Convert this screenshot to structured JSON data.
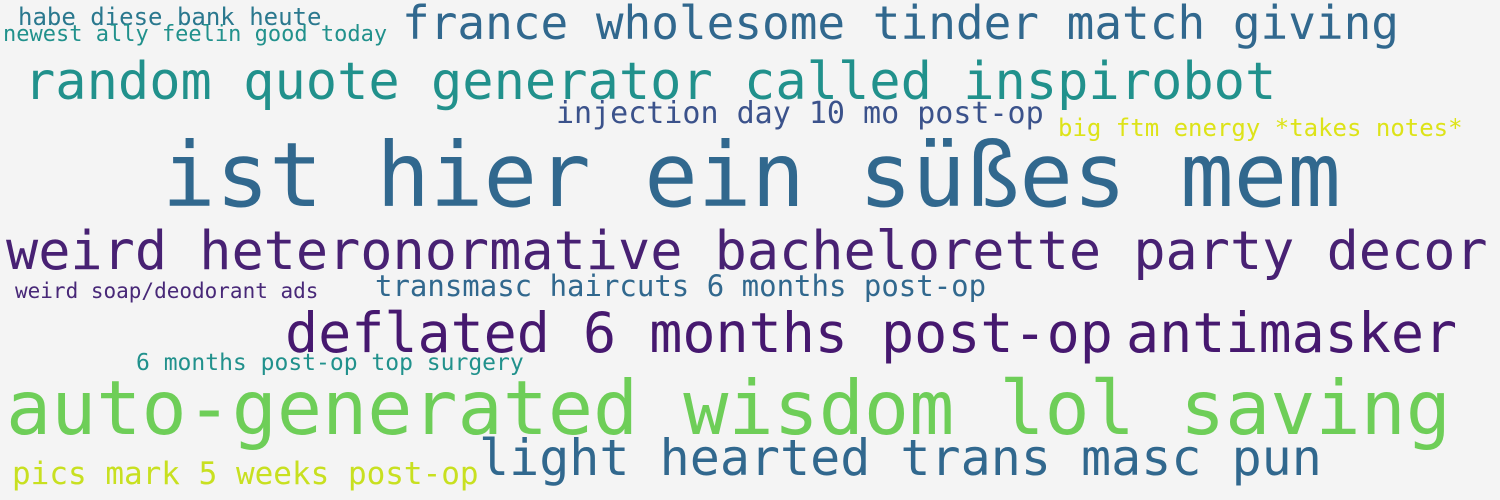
{
  "words": [
    {
      "text": "habe diese bank heute",
      "color": "#2a788e"
    },
    {
      "text": "newest ally feelin good today",
      "color": "#21918c"
    },
    {
      "text": "france wholesome tinder match giving",
      "color": "#31688e"
    },
    {
      "text": "random quote generator called inspirobot",
      "color": "#21918c"
    },
    {
      "text": "injection day 10 mo post-op",
      "color": "#3b528b"
    },
    {
      "text": "big ftm energy *takes notes*",
      "color": "#dde318"
    },
    {
      "text": "ist hier ein süßes mem",
      "color": "#31688e"
    },
    {
      "text": "weird heteronormative bachelorette party decor",
      "color": "#482173"
    },
    {
      "text": "weird soap/deodorant ads",
      "color": "#482878"
    },
    {
      "text": "transmasc haircuts 6 months post-op",
      "color": "#31688e"
    },
    {
      "text": "deflated 6 months post-op",
      "color": "#46186f"
    },
    {
      "text": "antimasker",
      "color": "#46186f"
    },
    {
      "text": "6 months post-op top surgery",
      "color": "#21918c"
    },
    {
      "text": "auto-generated wisdom lol saving",
      "color": "#6ece58"
    },
    {
      "text": "light hearted trans masc pun",
      "color": "#31688e"
    },
    {
      "text": "pics mark 5 weeks post-op",
      "color": "#c8e020"
    }
  ]
}
